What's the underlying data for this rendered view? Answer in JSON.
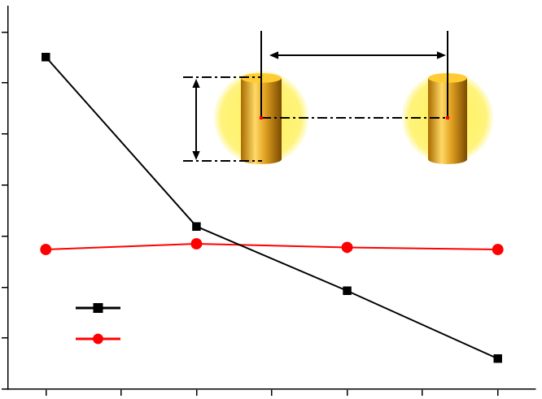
{
  "chart_data": {
    "type": "line",
    "x": [
      1,
      2,
      3,
      4
    ],
    "series": [
      {
        "color": "#000000",
        "marker": "square",
        "values": [
          6.51,
          3.19,
          1.93,
          0.6
        ]
      },
      {
        "color": "#ff0000",
        "marker": "circle",
        "values": [
          2.74,
          2.85,
          2.78,
          2.74
        ]
      }
    ],
    "xlim": [
      0.75,
      4.25
    ],
    "xticks": [
      1,
      1.5,
      2,
      2.5,
      3,
      3.5,
      4
    ],
    "ylim": [
      0,
      7.5
    ],
    "yticks": [
      0,
      1,
      2,
      3,
      4,
      5,
      6,
      7
    ],
    "grid": false,
    "legend": "lower left",
    "tick_labels": false
  }
}
